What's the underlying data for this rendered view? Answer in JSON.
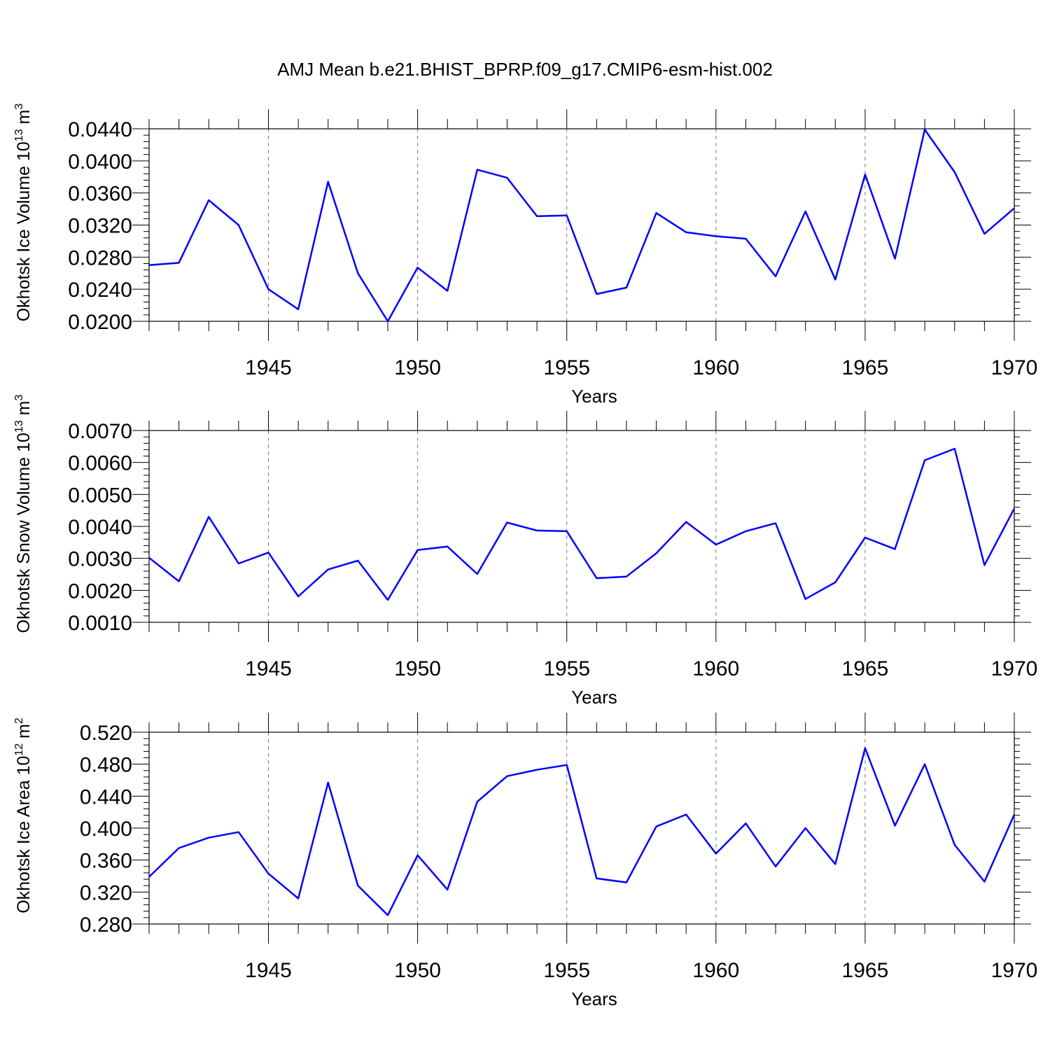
{
  "title": "AMJ Mean b.e21.BHIST_BPRP.f09_g17.CMIP6-esm-hist.002",
  "colors": {
    "line": "#0000ff",
    "axis": "#000000",
    "grid": "#777777"
  },
  "chart_data": [
    {
      "type": "line",
      "title": "AMJ Mean b.e21.BHIST_BPRP.f09_g17.CMIP6-esm-hist.002",
      "xlabel": "Years",
      "ylabel_main": "Okhotsk Ice Volume 10",
      "ylabel_exp": "13",
      "ylabel_unit": " m",
      "ylabel_unit_exp": "3",
      "xlim": [
        1941,
        1970
      ],
      "ylim": [
        0.02,
        0.044
      ],
      "y_major_step": 0.004,
      "y_minor_step": 0.0008,
      "y_tick_labels": [
        "0.0200",
        "0.0240",
        "0.0280",
        "0.0320",
        "0.0360",
        "0.0400",
        "0.0440"
      ],
      "x_tick_labels": [
        "1945",
        "1950",
        "1955",
        "1960",
        "1965",
        "1970"
      ],
      "grid": "dashed vertical at labeled years",
      "series": [
        {
          "name": "Okhotsk Ice Volume",
          "x": [
            1941,
            1942,
            1943,
            1944,
            1945,
            1946,
            1947,
            1948,
            1949,
            1950,
            1951,
            1952,
            1953,
            1954,
            1955,
            1956,
            1957,
            1958,
            1959,
            1960,
            1961,
            1962,
            1963,
            1964,
            1965,
            1966,
            1967,
            1968,
            1969,
            1970
          ],
          "values": [
            0.027,
            0.0273,
            0.0351,
            0.032,
            0.024,
            0.0215,
            0.0374,
            0.026,
            0.02,
            0.0267,
            0.0238,
            0.0389,
            0.0379,
            0.0331,
            0.0332,
            0.0234,
            0.0242,
            0.0335,
            0.0311,
            0.0306,
            0.0303,
            0.0256,
            0.0337,
            0.0252,
            0.0383,
            0.0278,
            0.0439,
            0.0386,
            0.0309,
            0.0341
          ]
        }
      ]
    },
    {
      "type": "line",
      "xlabel": "Years",
      "ylabel_main": "Okhotsk Snow Volume 10",
      "ylabel_exp": "13",
      "ylabel_unit": " m",
      "ylabel_unit_exp": "3",
      "xlim": [
        1941,
        1970
      ],
      "ylim": [
        0.001,
        0.007
      ],
      "y_major_step": 0.001,
      "y_minor_step": 0.0002,
      "y_tick_labels": [
        "0.0010",
        "0.0020",
        "0.0030",
        "0.0040",
        "0.0050",
        "0.0060",
        "0.0070"
      ],
      "x_tick_labels": [
        "1945",
        "1950",
        "1955",
        "1960",
        "1965",
        "1970"
      ],
      "grid": "dashed vertical at labeled years",
      "series": [
        {
          "name": "Okhotsk Snow Volume",
          "x": [
            1941,
            1942,
            1943,
            1944,
            1945,
            1946,
            1947,
            1948,
            1949,
            1950,
            1951,
            1952,
            1953,
            1954,
            1955,
            1956,
            1957,
            1958,
            1959,
            1960,
            1961,
            1962,
            1963,
            1964,
            1965,
            1966,
            1967,
            1968,
            1969,
            1970
          ],
          "values": [
            0.00302,
            0.00228,
            0.0043,
            0.00284,
            0.00318,
            0.00181,
            0.00265,
            0.00293,
            0.0017,
            0.00326,
            0.00337,
            0.00251,
            0.00412,
            0.00387,
            0.00385,
            0.00238,
            0.00243,
            0.00316,
            0.00414,
            0.00343,
            0.00385,
            0.0041,
            0.00173,
            0.00225,
            0.00365,
            0.00329,
            0.00607,
            0.00643,
            0.00279,
            0.00456
          ]
        }
      ]
    },
    {
      "type": "line",
      "xlabel": "Years",
      "ylabel_main": "Okhotsk Ice Area 10",
      "ylabel_exp": "12",
      "ylabel_unit": " m",
      "ylabel_unit_exp": "2",
      "xlim": [
        1941,
        1970
      ],
      "ylim": [
        0.28,
        0.52
      ],
      "y_major_step": 0.04,
      "y_minor_step": 0.008,
      "y_tick_labels": [
        "0.280",
        "0.320",
        "0.360",
        "0.400",
        "0.440",
        "0.480",
        "0.520"
      ],
      "x_tick_labels": [
        "1945",
        "1950",
        "1955",
        "1960",
        "1965",
        "1970"
      ],
      "grid": "dashed vertical at labeled years",
      "series": [
        {
          "name": "Okhotsk Ice Area",
          "x": [
            1941,
            1942,
            1943,
            1944,
            1945,
            1946,
            1947,
            1948,
            1949,
            1950,
            1951,
            1952,
            1953,
            1954,
            1955,
            1956,
            1957,
            1958,
            1959,
            1960,
            1961,
            1962,
            1963,
            1964,
            1965,
            1966,
            1967,
            1968,
            1969,
            1970
          ],
          "values": [
            0.339,
            0.375,
            0.388,
            0.395,
            0.343,
            0.312,
            0.457,
            0.328,
            0.291,
            0.366,
            0.323,
            0.433,
            0.465,
            0.473,
            0.479,
            0.337,
            0.332,
            0.402,
            0.417,
            0.368,
            0.406,
            0.352,
            0.4,
            0.355,
            0.5,
            0.403,
            0.48,
            0.379,
            0.333,
            0.417
          ]
        }
      ]
    }
  ]
}
